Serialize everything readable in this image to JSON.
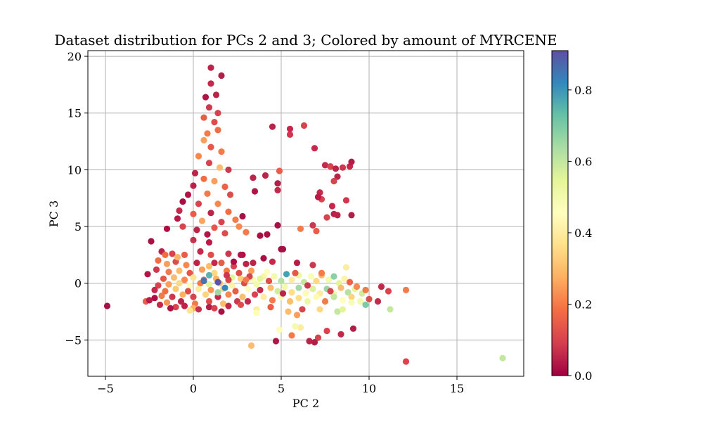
{
  "chart_data": {
    "type": "scatter",
    "title": "Dataset distribution for PCs 2 and 3; Colored by amount of MYRCENE",
    "xlabel": "PC 2",
    "ylabel": "PC 3",
    "xlim": [
      -6.0,
      18.8
    ],
    "ylim": [
      -8.2,
      20.5
    ],
    "xticks": [
      -5,
      0,
      5,
      10,
      15
    ],
    "xtick_labels": [
      "−5",
      "0",
      "5",
      "10",
      "15"
    ],
    "yticks": [
      -5,
      0,
      5,
      10,
      15,
      20
    ],
    "ytick_labels": [
      "−5",
      "0",
      "5",
      "10",
      "15",
      "20"
    ],
    "grid": true,
    "colorbar": {
      "colormap": "Spectral",
      "range": [
        0.0,
        0.91
      ],
      "ticks": [
        0.0,
        0.2,
        0.4,
        0.6,
        0.8
      ],
      "tick_labels": [
        "0.0",
        "0.2",
        "0.4",
        "0.6",
        "0.8"
      ]
    },
    "points": [
      [
        -4.9,
        -2.0,
        0.02
      ],
      [
        1.0,
        19.0,
        0.05
      ],
      [
        1.6,
        18.3,
        0.04
      ],
      [
        1.0,
        17.6,
        0.06
      ],
      [
        0.7,
        16.4,
        0.03
      ],
      [
        1.3,
        16.6,
        0.05
      ],
      [
        0.9,
        15.5,
        0.08
      ],
      [
        1.4,
        15.0,
        0.1
      ],
      [
        0.6,
        14.6,
        0.15
      ],
      [
        1.2,
        14.2,
        0.12
      ],
      [
        0.8,
        13.2,
        0.2
      ],
      [
        1.4,
        13.5,
        0.18
      ],
      [
        0.6,
        12.6,
        0.25
      ],
      [
        1.0,
        12.0,
        0.14
      ],
      [
        1.6,
        11.6,
        0.2
      ],
      [
        0.3,
        11.2,
        0.22
      ],
      [
        0.9,
        10.6,
        0.1
      ],
      [
        1.5,
        10.2,
        0.3
      ],
      [
        0.1,
        9.7,
        0.05
      ],
      [
        2.0,
        10.0,
        0.08
      ],
      [
        0.6,
        9.2,
        0.18
      ],
      [
        1.2,
        9.0,
        0.25
      ],
      [
        0.0,
        8.6,
        0.05
      ],
      [
        1.8,
        8.5,
        0.16
      ],
      [
        -0.3,
        7.8,
        0.03
      ],
      [
        0.8,
        7.9,
        0.2
      ],
      [
        2.1,
        7.8,
        0.12
      ],
      [
        -0.6,
        7.2,
        0.02
      ],
      [
        0.3,
        7.0,
        0.1
      ],
      [
        1.4,
        7.0,
        0.22
      ],
      [
        -0.8,
        6.4,
        0.06
      ],
      [
        0.0,
        6.1,
        0.15
      ],
      [
        1.0,
        6.2,
        0.05
      ],
      [
        2.0,
        6.3,
        0.18
      ],
      [
        -0.9,
        5.7,
        0.04
      ],
      [
        0.5,
        5.5,
        0.26
      ],
      [
        1.6,
        5.4,
        0.1
      ],
      [
        2.4,
        5.6,
        0.2
      ],
      [
        -0.6,
        5.0,
        0.1
      ],
      [
        0.2,
        4.7,
        0.05
      ],
      [
        1.2,
        4.9,
        0.14
      ],
      [
        2.6,
        5.0,
        0.22
      ],
      [
        -1.5,
        4.8,
        0.02
      ],
      [
        0.8,
        4.3,
        0.03
      ],
      [
        1.8,
        4.4,
        0.12
      ],
      [
        3.0,
        4.5,
        0.2
      ],
      [
        0.0,
        3.8,
        0.07
      ],
      [
        0.9,
        3.6,
        0.04
      ],
      [
        2.8,
        5.9,
        0.02
      ],
      [
        3.8,
        4.2,
        0.02
      ],
      [
        -2.4,
        3.7,
        0.02
      ],
      [
        -1.8,
        2.8,
        0.05
      ],
      [
        -1.2,
        2.6,
        0.1
      ],
      [
        -0.5,
        2.5,
        0.15
      ],
      [
        0.4,
        2.8,
        0.06
      ],
      [
        1.0,
        2.5,
        0.12
      ],
      [
        2.0,
        2.6,
        0.08
      ],
      [
        2.8,
        2.5,
        0.02
      ],
      [
        4.0,
        2.2,
        0.02
      ],
      [
        5.0,
        3.0,
        0.02
      ],
      [
        -2.0,
        2.0,
        0.18
      ],
      [
        -1.5,
        1.7,
        0.25
      ],
      [
        -1.0,
        1.9,
        0.12
      ],
      [
        -0.4,
        1.6,
        0.22
      ],
      [
        0.2,
        1.8,
        0.05
      ],
      [
        0.9,
        1.5,
        0.3
      ],
      [
        1.6,
        1.8,
        0.15
      ],
      [
        2.3,
        1.5,
        0.1
      ],
      [
        3.0,
        1.7,
        0.05
      ],
      [
        -2.1,
        1.2,
        0.08
      ],
      [
        -1.4,
        1.0,
        0.2
      ],
      [
        -0.8,
        1.1,
        0.3
      ],
      [
        -0.2,
        0.9,
        0.14
      ],
      [
        0.5,
        1.2,
        0.25
      ],
      [
        1.2,
        0.9,
        0.35
      ],
      [
        1.9,
        1.1,
        0.2
      ],
      [
        2.6,
        0.9,
        0.12
      ],
      [
        3.3,
        1.1,
        0.25
      ],
      [
        -2.6,
        0.8,
        0.03
      ],
      [
        -1.7,
        0.4,
        0.14
      ],
      [
        -1.1,
        0.5,
        0.3
      ],
      [
        -0.5,
        0.3,
        0.22
      ],
      [
        0.0,
        0.5,
        0.38
      ],
      [
        0.6,
        0.3,
        0.16
      ],
      [
        1.3,
        0.4,
        0.28
      ],
      [
        2.0,
        0.2,
        0.4
      ],
      [
        2.7,
        0.4,
        0.33
      ],
      [
        3.4,
        0.3,
        0.48
      ],
      [
        4.0,
        0.6,
        0.42
      ],
      [
        -2.0,
        -0.2,
        0.1
      ],
      [
        -1.4,
        -0.1,
        0.25
      ],
      [
        -0.8,
        0.0,
        0.35
      ],
      [
        -0.2,
        -0.2,
        0.45
      ],
      [
        0.4,
        0.0,
        0.2
      ],
      [
        0.9,
        -0.1,
        0.55
      ],
      [
        1.5,
        0.0,
        0.3
      ],
      [
        2.2,
        -0.2,
        0.42
      ],
      [
        2.9,
        0.0,
        0.12
      ],
      [
        3.6,
        -0.1,
        0.5
      ],
      [
        -2.2,
        -0.6,
        0.06
      ],
      [
        -1.6,
        -0.7,
        0.18
      ],
      [
        -1.0,
        -0.5,
        0.32
      ],
      [
        -0.3,
        -0.7,
        0.12
      ],
      [
        0.3,
        -0.5,
        0.4
      ],
      [
        1.0,
        -0.6,
        0.24
      ],
      [
        1.7,
        -0.5,
        0.36
      ],
      [
        2.4,
        -0.7,
        0.15
      ],
      [
        3.1,
        -0.5,
        0.45
      ],
      [
        -1.8,
        -1.1,
        0.2
      ],
      [
        -1.2,
        -1.2,
        0.08
      ],
      [
        -0.6,
        -1.0,
        0.28
      ],
      [
        0.0,
        -1.2,
        0.1
      ],
      [
        0.7,
        -1.0,
        0.34
      ],
      [
        1.4,
        -1.2,
        0.06
      ],
      [
        2.0,
        -1.0,
        0.22
      ],
      [
        2.8,
        -1.2,
        0.3
      ],
      [
        3.5,
        -1.0,
        0.1
      ],
      [
        -2.7,
        -1.6,
        0.15
      ],
      [
        -1.5,
        -1.7,
        0.24
      ],
      [
        -0.7,
        -1.6,
        0.05
      ],
      [
        0.1,
        -1.8,
        0.2
      ],
      [
        0.9,
        -1.6,
        0.12
      ],
      [
        1.7,
        -1.8,
        0.3
      ],
      [
        2.5,
        -1.6,
        0.08
      ],
      [
        -1.0,
        -2.1,
        0.1
      ],
      [
        0.0,
        -2.2,
        0.28
      ],
      [
        0.9,
        -2.1,
        0.04
      ],
      [
        1.6,
        -2.5,
        0.02
      ],
      [
        -0.2,
        -2.4,
        0.38
      ],
      [
        0.6,
        0.2,
        0.85
      ],
      [
        1.4,
        0.1,
        0.9
      ],
      [
        1.8,
        -0.4,
        0.82
      ],
      [
        0.9,
        0.7,
        0.75
      ],
      [
        1.4,
        -0.8,
        0.65
      ],
      [
        2.2,
        0.5,
        0.55
      ],
      [
        3.8,
        0.4,
        0.55
      ],
      [
        4.2,
        1.0,
        0.45
      ],
      [
        4.6,
        0.6,
        0.5
      ],
      [
        5.0,
        0.2,
        0.62
      ],
      [
        5.3,
        0.8,
        0.78
      ],
      [
        5.6,
        0.3,
        0.4
      ],
      [
        6.0,
        0.7,
        0.52
      ],
      [
        6.3,
        0.1,
        0.6
      ],
      [
        6.7,
        0.6,
        0.48
      ],
      [
        7.0,
        0.2,
        0.35
      ],
      [
        7.3,
        0.7,
        0.3
      ],
      [
        7.7,
        0.3,
        0.5
      ],
      [
        8.0,
        0.6,
        0.68
      ],
      [
        8.3,
        0.0,
        0.55
      ],
      [
        8.6,
        0.4,
        0.42
      ],
      [
        4.4,
        -0.4,
        0.3
      ],
      [
        4.8,
        -0.7,
        0.58
      ],
      [
        5.2,
        -0.3,
        0.5
      ],
      [
        5.6,
        -0.8,
        0.36
      ],
      [
        6.0,
        -0.4,
        0.65
      ],
      [
        6.4,
        -0.9,
        0.44
      ],
      [
        6.8,
        -0.5,
        0.56
      ],
      [
        7.2,
        -0.9,
        0.4
      ],
      [
        7.6,
        -0.5,
        0.66
      ],
      [
        8.0,
        -0.9,
        0.5
      ],
      [
        8.4,
        -0.4,
        0.3
      ],
      [
        8.8,
        -0.8,
        0.62
      ],
      [
        9.2,
        -0.5,
        0.54
      ],
      [
        9.6,
        -0.9,
        0.58
      ],
      [
        4.0,
        -1.2,
        0.4
      ],
      [
        4.5,
        -1.5,
        0.2
      ],
      [
        5.0,
        -1.2,
        0.48
      ],
      [
        5.5,
        -1.6,
        0.3
      ],
      [
        6.0,
        -1.3,
        0.36
      ],
      [
        6.5,
        -1.6,
        0.52
      ],
      [
        7.0,
        -1.2,
        0.44
      ],
      [
        7.5,
        -1.6,
        0.2
      ],
      [
        8.0,
        -1.2,
        0.6
      ],
      [
        8.5,
        -1.5,
        0.46
      ],
      [
        9.0,
        -1.2,
        0.34
      ],
      [
        9.5,
        -1.6,
        0.5
      ],
      [
        3.6,
        -2.3,
        0.4
      ],
      [
        4.4,
        -2.1,
        0.15
      ],
      [
        5.4,
        -2.5,
        0.3
      ],
      [
        6.2,
        -2.3,
        0.1
      ],
      [
        7.2,
        -2.3,
        0.35
      ],
      [
        8.2,
        -2.5,
        0.6
      ],
      [
        8.5,
        -2.3,
        0.55
      ],
      [
        3.2,
        0.6,
        0.1
      ],
      [
        3.8,
        -0.6,
        0.06
      ],
      [
        4.3,
        0.2,
        0.12
      ],
      [
        5.1,
        -0.9,
        0.05
      ],
      [
        5.8,
        0.9,
        0.14
      ],
      [
        6.5,
        -0.2,
        0.08
      ],
      [
        7.3,
        0.9,
        0.2
      ],
      [
        7.8,
        -0.7,
        0.1
      ],
      [
        8.9,
        0.1,
        0.16
      ],
      [
        9.3,
        -0.3,
        0.22
      ],
      [
        9.8,
        -0.6,
        0.2
      ],
      [
        10.0,
        -1.4,
        0.12
      ],
      [
        10.5,
        -1.6,
        0.06
      ],
      [
        11.1,
        -0.7,
        0.1
      ],
      [
        10.7,
        -0.3,
        0.06
      ],
      [
        12.1,
        -0.6,
        0.2
      ],
      [
        11.2,
        -2.3,
        0.6
      ],
      [
        9.8,
        -1.9,
        0.7
      ],
      [
        9.0,
        -1.7,
        0.48
      ],
      [
        8.7,
        1.4,
        0.4
      ],
      [
        6.1,
        -3.9,
        0.4
      ],
      [
        5.8,
        -3.8,
        0.5
      ],
      [
        4.9,
        -4.1,
        0.45
      ],
      [
        5.6,
        -4.6,
        0.2
      ],
      [
        7.1,
        -4.8,
        0.1
      ],
      [
        6.6,
        -5.1,
        0.05
      ],
      [
        6.9,
        -5.2,
        0.04
      ],
      [
        4.7,
        -5.1,
        0.03
      ],
      [
        3.3,
        -5.5,
        0.3
      ],
      [
        7.6,
        -4.2,
        0.1
      ],
      [
        8.4,
        -4.5,
        0.06
      ],
      [
        9.1,
        -4.0,
        0.04
      ],
      [
        12.1,
        -6.9,
        0.1
      ],
      [
        17.6,
        -6.6,
        0.6
      ],
      [
        5.9,
        -2.8,
        0.25
      ],
      [
        3.6,
        -2.6,
        0.45
      ],
      [
        4.5,
        13.8,
        0.05
      ],
      [
        5.5,
        13.6,
        0.06
      ],
      [
        6.3,
        13.9,
        0.1
      ],
      [
        5.5,
        13.1,
        0.08
      ],
      [
        6.9,
        11.9,
        0.06
      ],
      [
        7.5,
        10.4,
        0.06
      ],
      [
        7.8,
        10.3,
        0.1
      ],
      [
        8.1,
        10.1,
        0.05
      ],
      [
        8.5,
        10.2,
        0.08
      ],
      [
        8.9,
        10.3,
        0.06
      ],
      [
        9.0,
        10.7,
        0.04
      ],
      [
        8.2,
        9.4,
        0.05
      ],
      [
        8.0,
        9.0,
        0.1
      ],
      [
        7.2,
        8.0,
        0.06
      ],
      [
        7.3,
        7.4,
        0.1
      ],
      [
        7.1,
        7.6,
        0.04
      ],
      [
        7.9,
        6.8,
        0.06
      ],
      [
        8.2,
        6.0,
        0.05
      ],
      [
        8.7,
        7.3,
        0.08
      ],
      [
        9.0,
        6.0,
        0.04
      ],
      [
        7.6,
        5.8,
        0.1
      ],
      [
        8.0,
        6.1,
        0.05
      ],
      [
        6.1,
        4.8,
        0.2
      ],
      [
        7.0,
        4.6,
        0.15
      ],
      [
        6.8,
        5.1,
        0.08
      ],
      [
        4.8,
        8.8,
        0.04
      ],
      [
        4.8,
        8.2,
        0.06
      ],
      [
        4.9,
        9.9,
        0.15
      ],
      [
        3.4,
        9.3,
        0.05
      ],
      [
        3.5,
        8.1,
        0.03
      ],
      [
        4.1,
        9.5,
        0.05
      ],
      [
        4.8,
        5.1,
        0.02
      ],
      [
        4.2,
        4.3,
        0.02
      ],
      [
        5.1,
        3.0,
        0.02
      ],
      [
        3.4,
        1.8,
        0.05
      ],
      [
        4.5,
        1.9,
        0.06
      ],
      [
        5.9,
        1.8,
        0.04
      ],
      [
        6.8,
        1.6,
        0.08
      ],
      [
        2.3,
        1.9,
        0.02
      ],
      [
        2.7,
        2.5,
        0.03
      ],
      [
        3.0,
        0.3,
        0.2
      ],
      [
        2.0,
        0.3,
        0.1
      ],
      [
        1.2,
        1.8,
        0.06
      ],
      [
        1.9,
        0.7,
        0.08
      ],
      [
        -0.9,
        2.3,
        0.28
      ],
      [
        -1.6,
        2.5,
        0.18
      ],
      [
        -2.2,
        -1.3,
        0.02
      ],
      [
        -2.5,
        -1.5,
        0.04
      ],
      [
        -1.9,
        -1.9,
        0.06
      ],
      [
        -1.3,
        -2.2,
        0.03
      ],
      [
        -0.5,
        -2.0,
        0.05
      ],
      [
        0.3,
        -2.3,
        0.07
      ],
      [
        1.2,
        -2.2,
        0.1
      ],
      [
        2.0,
        -2.0,
        0.06
      ],
      [
        2.7,
        -1.9,
        0.12
      ],
      [
        3.1,
        -1.6,
        0.06
      ]
    ]
  }
}
